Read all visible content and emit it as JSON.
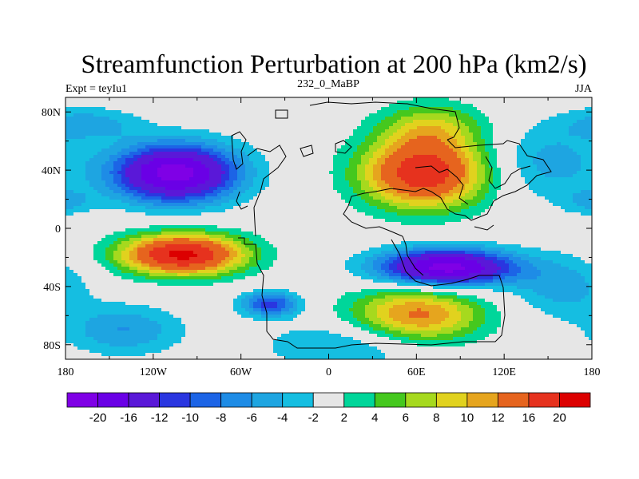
{
  "chart_data": {
    "type": "heatmap",
    "title": "Streamfunction Perturbation at 200 hPa (km2/s)",
    "left_label": "Expt = teyIu1",
    "center_label": "232_0_MaBP",
    "right_label": "JJA",
    "x_ticks": [
      "180",
      "120W",
      "60W",
      "0",
      "60E",
      "120E",
      "180"
    ],
    "x_tick_values": [
      -180,
      -120,
      -60,
      0,
      60,
      120,
      180
    ],
    "y_ticks": [
      "80N",
      "40N",
      "0",
      "40S",
      "80S"
    ],
    "y_tick_values": [
      80,
      40,
      0,
      -40,
      -80
    ],
    "xlim": [
      -180,
      180
    ],
    "ylim": [
      -90,
      90
    ],
    "levels": [
      -20,
      -16,
      -12,
      -10,
      -8,
      -6,
      -4,
      -2,
      2,
      4,
      6,
      8,
      10,
      12,
      16,
      20
    ],
    "colorbar_labels": [
      "-20",
      "-16",
      "-12",
      "-10",
      "-8",
      "-6",
      "-4",
      "-2",
      "2",
      "4",
      "6",
      "8",
      "10",
      "12",
      "16",
      "20"
    ],
    "colors": [
      "#7F00E6",
      "#6A00E6",
      "#5A18D8",
      "#2A36E0",
      "#1C64E6",
      "#1E8CE6",
      "#1EA5E1",
      "#15BEE1",
      "#E6E6E6",
      "#00D69A",
      "#45C81E",
      "#A6D91E",
      "#E1D21E",
      "#E6A51E",
      "#E6641E",
      "#E6321E",
      "#DC0000"
    ],
    "anomalies": [
      {
        "lon": -105,
        "lat": 38,
        "slon": 30,
        "slat": 14,
        "amp": -22
      },
      {
        "lon": -40,
        "lat": -52,
        "slon": 14,
        "slat": 6,
        "amp": -11
      },
      {
        "lon": -165,
        "lat": 72,
        "slon": 25,
        "slat": 8,
        "amp": -5
      },
      {
        "lon": 180,
        "lat": 18,
        "slon": 14,
        "slat": 6,
        "amp": -4
      },
      {
        "lon": 150,
        "lat": 45,
        "slon": 28,
        "slat": 18,
        "amp": -5
      },
      {
        "lon": 160,
        "lat": -40,
        "slon": 25,
        "slat": 15,
        "amp": -5
      },
      {
        "lon": -140,
        "lat": -70,
        "slon": 28,
        "slat": 12,
        "amp": -6
      },
      {
        "lon": 15,
        "lat": -80,
        "slon": 40,
        "slat": 12,
        "amp": -5
      },
      {
        "lon": 65,
        "lat": 38,
        "slon": 30,
        "slat": 17,
        "amp": 19
      },
      {
        "lon": 70,
        "lat": 70,
        "slon": 25,
        "slat": 12,
        "amp": 7
      },
      {
        "lon": -100,
        "lat": -18,
        "slon": 30,
        "slat": 10,
        "amp": 21
      },
      {
        "lon": 80,
        "lat": -27,
        "slon": 32,
        "slat": 9,
        "amp": -22
      },
      {
        "lon": 60,
        "lat": -60,
        "slon": 32,
        "slat": 14,
        "amp": 13
      }
    ]
  }
}
